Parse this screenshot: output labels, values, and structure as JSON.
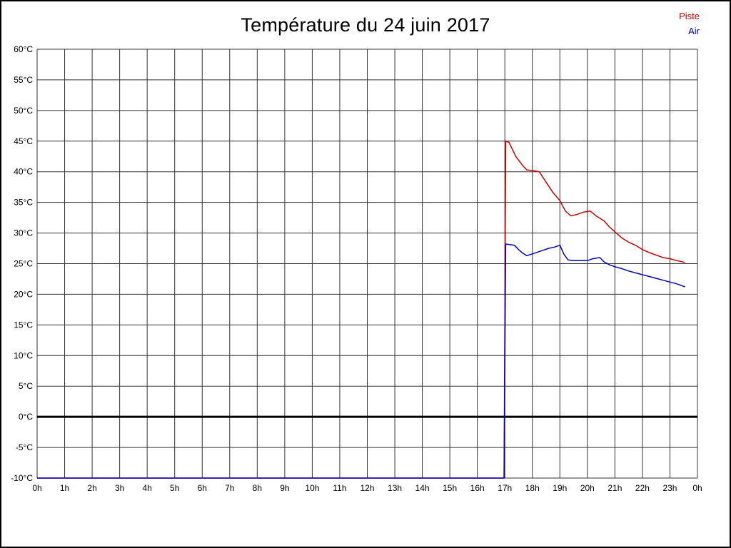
{
  "page": {
    "title": "Température du 24 juin 2017"
  },
  "legend": {
    "items": [
      {
        "label": "Piste",
        "color": "#cc0000"
      },
      {
        "label": "Air",
        "color": "#0000cc"
      }
    ]
  },
  "chart_data": {
    "type": "line",
    "title": "Température du 24 juin 2017",
    "xlabel": "",
    "ylabel": "",
    "x_unit": "hour",
    "y_unit": "°C",
    "xlim": [
      0,
      24
    ],
    "ylim": [
      -10,
      60
    ],
    "y_tick_step": 5,
    "grid": true,
    "grid_color": "#333333",
    "zero_line_color": "#000000",
    "legend_position": "top-right",
    "x_tick_labels": [
      "0h",
      "1h",
      "2h",
      "3h",
      "4h",
      "5h",
      "6h",
      "7h",
      "8h",
      "9h",
      "10h",
      "11h",
      "12h",
      "13h",
      "14h",
      "15h",
      "16h",
      "17h",
      "18h",
      "19h",
      "20h",
      "21h",
      "22h",
      "23h",
      "0h"
    ],
    "y_tick_labels": [
      "60°C",
      "55°C",
      "50°C",
      "45°C",
      "40°C",
      "35°C",
      "30°C",
      "25°C",
      "20°C",
      "15°C",
      "10°C",
      "5°C",
      "0°C",
      "-5°C",
      "-10°C"
    ],
    "series": [
      {
        "name": "Piste",
        "color": "#cc0000",
        "points": [
          [
            0,
            -10
          ],
          [
            16.97,
            -10
          ],
          [
            17.03,
            45
          ],
          [
            17.15,
            44.8
          ],
          [
            17.4,
            42.5
          ],
          [
            17.65,
            41
          ],
          [
            17.8,
            40.3
          ],
          [
            18.0,
            40.2
          ],
          [
            18.25,
            40.0
          ],
          [
            18.5,
            38.3
          ],
          [
            18.75,
            36.6
          ],
          [
            19.0,
            35.3
          ],
          [
            19.2,
            33.6
          ],
          [
            19.4,
            32.8
          ],
          [
            19.6,
            33.0
          ],
          [
            19.85,
            33.4
          ],
          [
            20.1,
            33.6
          ],
          [
            20.35,
            32.7
          ],
          [
            20.6,
            32.0
          ],
          [
            20.8,
            31.0
          ],
          [
            21.0,
            30.2
          ],
          [
            21.25,
            29.2
          ],
          [
            21.5,
            28.5
          ],
          [
            21.75,
            28.0
          ],
          [
            22.0,
            27.3
          ],
          [
            22.25,
            26.8
          ],
          [
            22.5,
            26.4
          ],
          [
            22.75,
            26.0
          ],
          [
            23.0,
            25.8
          ],
          [
            23.25,
            25.5
          ],
          [
            23.55,
            25.2
          ]
        ]
      },
      {
        "name": "Air",
        "color": "#0000cc",
        "points": [
          [
            0,
            -10
          ],
          [
            16.97,
            -10
          ],
          [
            17.03,
            28.2
          ],
          [
            17.2,
            28.1
          ],
          [
            17.35,
            28.0
          ],
          [
            17.5,
            27.3
          ],
          [
            17.65,
            26.7
          ],
          [
            17.8,
            26.3
          ],
          [
            18.0,
            26.6
          ],
          [
            18.2,
            26.9
          ],
          [
            18.4,
            27.2
          ],
          [
            18.6,
            27.5
          ],
          [
            18.8,
            27.7
          ],
          [
            19.0,
            28.0
          ],
          [
            19.15,
            26.5
          ],
          [
            19.3,
            25.6
          ],
          [
            19.5,
            25.5
          ],
          [
            19.75,
            25.5
          ],
          [
            20.0,
            25.5
          ],
          [
            20.2,
            25.8
          ],
          [
            20.45,
            26.0
          ],
          [
            20.6,
            25.3
          ],
          [
            20.8,
            24.8
          ],
          [
            21.0,
            24.5
          ],
          [
            21.25,
            24.2
          ],
          [
            21.5,
            23.8
          ],
          [
            21.75,
            23.5
          ],
          [
            22.0,
            23.2
          ],
          [
            22.25,
            22.9
          ],
          [
            22.5,
            22.6
          ],
          [
            22.75,
            22.3
          ],
          [
            23.0,
            22.0
          ],
          [
            23.25,
            21.7
          ],
          [
            23.55,
            21.2
          ]
        ]
      }
    ]
  }
}
